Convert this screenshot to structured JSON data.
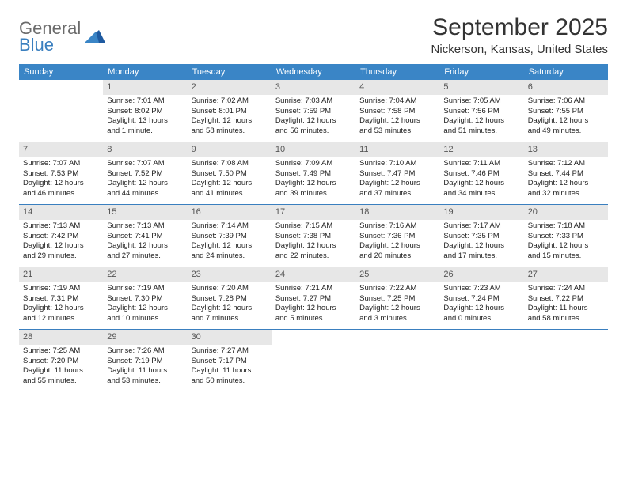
{
  "logo": {
    "word1": "General",
    "word2": "Blue"
  },
  "title": "September 2025",
  "location": "Nickerson, Kansas, United States",
  "colors": {
    "header_bg": "#3a85c6",
    "header_text": "#ffffff",
    "daynum_bg": "#e7e7e7",
    "daynum_text": "#555555",
    "divider": "#3a7fbf",
    "body_text": "#222222",
    "logo_gray": "#6b6b6b",
    "logo_blue": "#3a7fbf"
  },
  "typography": {
    "title_fontsize": 30,
    "location_fontsize": 15,
    "weekday_fontsize": 11,
    "daynum_fontsize": 11,
    "cell_fontsize": 9.5
  },
  "weekdays": [
    "Sunday",
    "Monday",
    "Tuesday",
    "Wednesday",
    "Thursday",
    "Friday",
    "Saturday"
  ],
  "weeks": [
    [
      null,
      {
        "n": "1",
        "sr": "Sunrise: 7:01 AM",
        "ss": "Sunset: 8:02 PM",
        "d1": "Daylight: 13 hours",
        "d2": "and 1 minute."
      },
      {
        "n": "2",
        "sr": "Sunrise: 7:02 AM",
        "ss": "Sunset: 8:01 PM",
        "d1": "Daylight: 12 hours",
        "d2": "and 58 minutes."
      },
      {
        "n": "3",
        "sr": "Sunrise: 7:03 AM",
        "ss": "Sunset: 7:59 PM",
        "d1": "Daylight: 12 hours",
        "d2": "and 56 minutes."
      },
      {
        "n": "4",
        "sr": "Sunrise: 7:04 AM",
        "ss": "Sunset: 7:58 PM",
        "d1": "Daylight: 12 hours",
        "d2": "and 53 minutes."
      },
      {
        "n": "5",
        "sr": "Sunrise: 7:05 AM",
        "ss": "Sunset: 7:56 PM",
        "d1": "Daylight: 12 hours",
        "d2": "and 51 minutes."
      },
      {
        "n": "6",
        "sr": "Sunrise: 7:06 AM",
        "ss": "Sunset: 7:55 PM",
        "d1": "Daylight: 12 hours",
        "d2": "and 49 minutes."
      }
    ],
    [
      {
        "n": "7",
        "sr": "Sunrise: 7:07 AM",
        "ss": "Sunset: 7:53 PM",
        "d1": "Daylight: 12 hours",
        "d2": "and 46 minutes."
      },
      {
        "n": "8",
        "sr": "Sunrise: 7:07 AM",
        "ss": "Sunset: 7:52 PM",
        "d1": "Daylight: 12 hours",
        "d2": "and 44 minutes."
      },
      {
        "n": "9",
        "sr": "Sunrise: 7:08 AM",
        "ss": "Sunset: 7:50 PM",
        "d1": "Daylight: 12 hours",
        "d2": "and 41 minutes."
      },
      {
        "n": "10",
        "sr": "Sunrise: 7:09 AM",
        "ss": "Sunset: 7:49 PM",
        "d1": "Daylight: 12 hours",
        "d2": "and 39 minutes."
      },
      {
        "n": "11",
        "sr": "Sunrise: 7:10 AM",
        "ss": "Sunset: 7:47 PM",
        "d1": "Daylight: 12 hours",
        "d2": "and 37 minutes."
      },
      {
        "n": "12",
        "sr": "Sunrise: 7:11 AM",
        "ss": "Sunset: 7:46 PM",
        "d1": "Daylight: 12 hours",
        "d2": "and 34 minutes."
      },
      {
        "n": "13",
        "sr": "Sunrise: 7:12 AM",
        "ss": "Sunset: 7:44 PM",
        "d1": "Daylight: 12 hours",
        "d2": "and 32 minutes."
      }
    ],
    [
      {
        "n": "14",
        "sr": "Sunrise: 7:13 AM",
        "ss": "Sunset: 7:42 PM",
        "d1": "Daylight: 12 hours",
        "d2": "and 29 minutes."
      },
      {
        "n": "15",
        "sr": "Sunrise: 7:13 AM",
        "ss": "Sunset: 7:41 PM",
        "d1": "Daylight: 12 hours",
        "d2": "and 27 minutes."
      },
      {
        "n": "16",
        "sr": "Sunrise: 7:14 AM",
        "ss": "Sunset: 7:39 PM",
        "d1": "Daylight: 12 hours",
        "d2": "and 24 minutes."
      },
      {
        "n": "17",
        "sr": "Sunrise: 7:15 AM",
        "ss": "Sunset: 7:38 PM",
        "d1": "Daylight: 12 hours",
        "d2": "and 22 minutes."
      },
      {
        "n": "18",
        "sr": "Sunrise: 7:16 AM",
        "ss": "Sunset: 7:36 PM",
        "d1": "Daylight: 12 hours",
        "d2": "and 20 minutes."
      },
      {
        "n": "19",
        "sr": "Sunrise: 7:17 AM",
        "ss": "Sunset: 7:35 PM",
        "d1": "Daylight: 12 hours",
        "d2": "and 17 minutes."
      },
      {
        "n": "20",
        "sr": "Sunrise: 7:18 AM",
        "ss": "Sunset: 7:33 PM",
        "d1": "Daylight: 12 hours",
        "d2": "and 15 minutes."
      }
    ],
    [
      {
        "n": "21",
        "sr": "Sunrise: 7:19 AM",
        "ss": "Sunset: 7:31 PM",
        "d1": "Daylight: 12 hours",
        "d2": "and 12 minutes."
      },
      {
        "n": "22",
        "sr": "Sunrise: 7:19 AM",
        "ss": "Sunset: 7:30 PM",
        "d1": "Daylight: 12 hours",
        "d2": "and 10 minutes."
      },
      {
        "n": "23",
        "sr": "Sunrise: 7:20 AM",
        "ss": "Sunset: 7:28 PM",
        "d1": "Daylight: 12 hours",
        "d2": "and 7 minutes."
      },
      {
        "n": "24",
        "sr": "Sunrise: 7:21 AM",
        "ss": "Sunset: 7:27 PM",
        "d1": "Daylight: 12 hours",
        "d2": "and 5 minutes."
      },
      {
        "n": "25",
        "sr": "Sunrise: 7:22 AM",
        "ss": "Sunset: 7:25 PM",
        "d1": "Daylight: 12 hours",
        "d2": "and 3 minutes."
      },
      {
        "n": "26",
        "sr": "Sunrise: 7:23 AM",
        "ss": "Sunset: 7:24 PM",
        "d1": "Daylight: 12 hours",
        "d2": "and 0 minutes."
      },
      {
        "n": "27",
        "sr": "Sunrise: 7:24 AM",
        "ss": "Sunset: 7:22 PM",
        "d1": "Daylight: 11 hours",
        "d2": "and 58 minutes."
      }
    ],
    [
      {
        "n": "28",
        "sr": "Sunrise: 7:25 AM",
        "ss": "Sunset: 7:20 PM",
        "d1": "Daylight: 11 hours",
        "d2": "and 55 minutes."
      },
      {
        "n": "29",
        "sr": "Sunrise: 7:26 AM",
        "ss": "Sunset: 7:19 PM",
        "d1": "Daylight: 11 hours",
        "d2": "and 53 minutes."
      },
      {
        "n": "30",
        "sr": "Sunrise: 7:27 AM",
        "ss": "Sunset: 7:17 PM",
        "d1": "Daylight: 11 hours",
        "d2": "and 50 minutes."
      },
      null,
      null,
      null,
      null
    ]
  ]
}
